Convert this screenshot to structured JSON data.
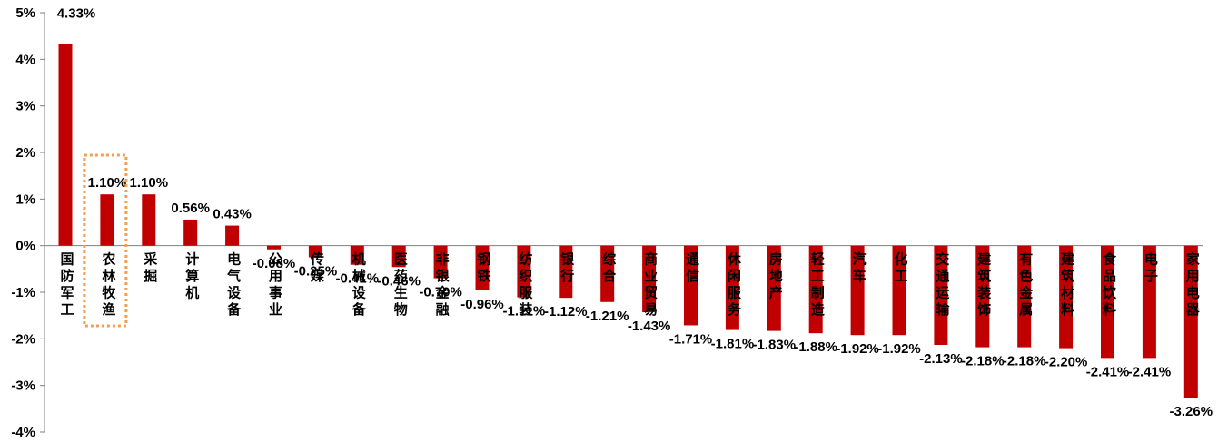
{
  "chart_data": {
    "type": "bar",
    "categories": [
      "国防军工",
      "农林牧渔",
      "采掘",
      "计算机",
      "电气设备",
      "公用事业",
      "传媒",
      "机械设备",
      "医药生物",
      "非银金融",
      "钢铁",
      "纺织服装",
      "银行",
      "综合",
      "商业贸易",
      "通信",
      "休闲服务",
      "房地产",
      "轻工制造",
      "汽车",
      "化工",
      "交通运输",
      "建筑装饰",
      "有色金属",
      "建筑材料",
      "食品饮料",
      "电子",
      "家用电器"
    ],
    "values": [
      4.33,
      1.1,
      1.1,
      0.56,
      0.43,
      -0.08,
      -0.25,
      -0.41,
      -0.46,
      -0.7,
      -0.96,
      -1.11,
      -1.12,
      -1.21,
      -1.43,
      -1.71,
      -1.81,
      -1.83,
      -1.88,
      -1.92,
      -1.92,
      -2.13,
      -2.18,
      -2.18,
      -2.2,
      -2.41,
      -2.41,
      -3.26
    ],
    "data_labels": [
      "4.33%",
      "1.10%",
      "1.10%",
      "0.56%",
      "0.43%",
      "-0.08%",
      "-0.25%",
      "-0.41%",
      "-0.46%",
      "-0.70%",
      "-0.96%",
      "-1.11%",
      "-1.12%",
      "-1.21%",
      "-1.43%",
      "-1.71%",
      "-1.81%",
      "-1.83%",
      "-1.88%",
      "-1.92%",
      "-1.92%",
      "-2.13%",
      "-2.18%",
      "-2.18%",
      "-2.20%",
      "-2.41%",
      "-2.41%",
      "-3.26%"
    ],
    "y_ticks": [
      "5%",
      "4%",
      "3%",
      "2%",
      "1%",
      "0%",
      "-1%",
      "-2%",
      "-3%",
      "-4%"
    ],
    "ylim": [
      -4,
      5
    ],
    "title": "",
    "xlabel": "",
    "ylabel": "",
    "legend": "none",
    "grid": false,
    "bar_color": "#C00000",
    "highlight_color": "#F0A050",
    "highlight_category": "农林牧渔"
  }
}
